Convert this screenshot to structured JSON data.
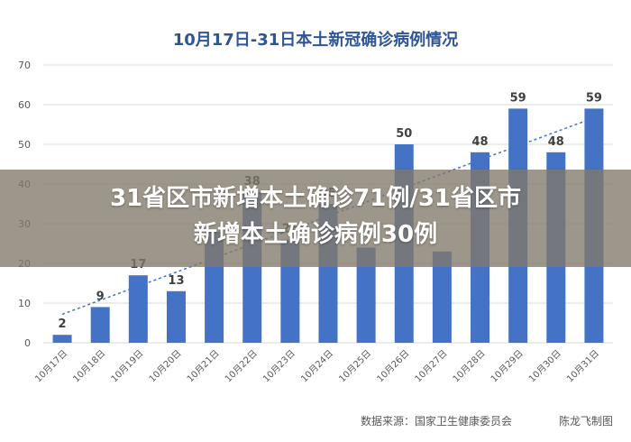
{
  "chart_data": {
    "type": "bar",
    "title": "10月17日-31日本土新冠确诊病例情况",
    "categories": [
      "10月17日",
      "10月18日",
      "10月19日",
      "10月20日",
      "10月21日",
      "10月22日",
      "10月23日",
      "10月24日",
      "10月25日",
      "10月26日",
      "10月27日",
      "10月28日",
      "10月29日",
      "10月30日",
      "10月31日"
    ],
    "values": [
      2,
      9,
      17,
      13,
      28,
      38,
      26,
      35,
      24,
      50,
      23,
      48,
      59,
      48,
      59
    ],
    "data_labels": [
      "2",
      "9",
      "17",
      "13",
      "",
      "38",
      "26",
      "35",
      "",
      "50",
      "",
      "48",
      "59",
      "48",
      "59"
    ],
    "trendline": true,
    "ylim": [
      0,
      70
    ],
    "yticks": [
      0,
      10,
      20,
      30,
      40,
      50,
      60,
      70
    ],
    "grid": true,
    "xlabel": "",
    "ylabel": "",
    "colors": {
      "bar": "#4472c4",
      "trend": "#4472c4",
      "title": "#2f5597",
      "grid": "#d9d9d9"
    }
  },
  "overlay": {
    "line1": "31省区市新增本土确诊71例/31省区市",
    "line2": "新增本土确诊病例30例"
  },
  "footer": {
    "source": "数据来源：国家卫生健康委员会",
    "credit": "陈龙飞制图"
  }
}
